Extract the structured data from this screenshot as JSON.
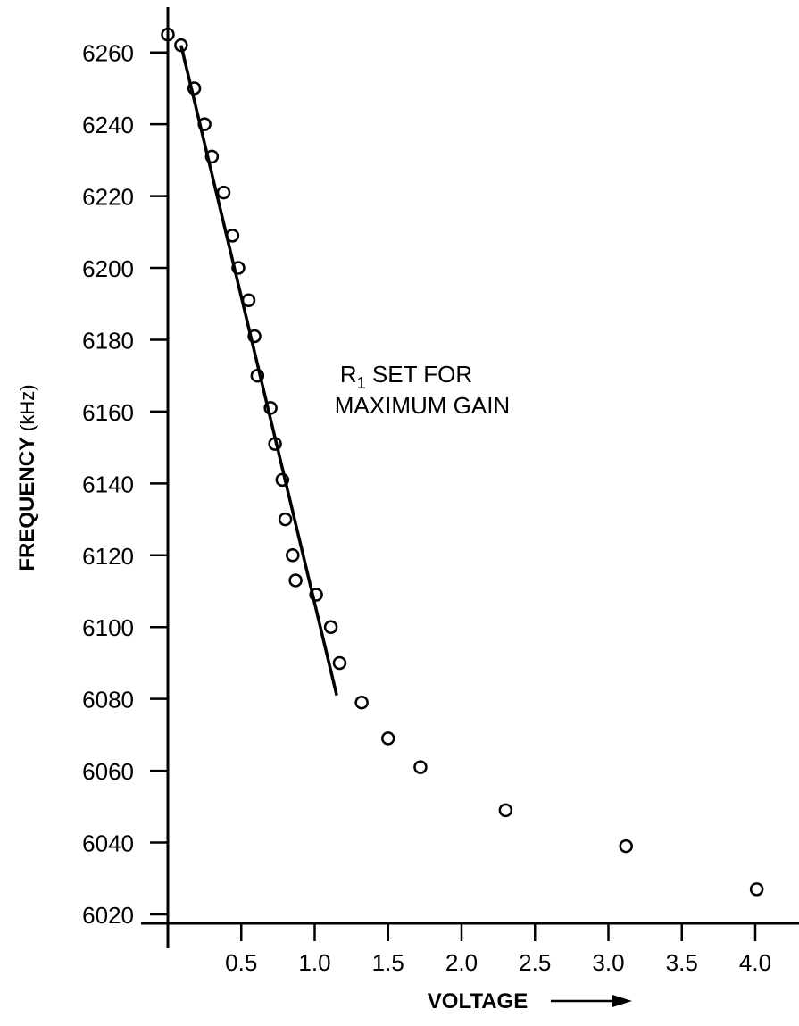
{
  "chart_data": {
    "type": "scatter",
    "xlabel": "VOLTAGE",
    "ylabel_bold": "FREQUENCY",
    "ylabel_unit": "(kHz)",
    "xlim": [
      0,
      4.2
    ],
    "ylim": [
      6013,
      6271
    ],
    "x_ticks": [
      "0.5",
      "1.0",
      "1.5",
      "2.0",
      "2.5",
      "3.0",
      "3.5",
      "4.0"
    ],
    "y_ticks": [
      "6020",
      "6040",
      "6060",
      "6080",
      "6100",
      "6120",
      "6140",
      "6160",
      "6180",
      "6200",
      "6220",
      "6240",
      "6260"
    ],
    "annotation": {
      "line1_main": "R",
      "line1_sub": "1",
      "line1_rest": " SET FOR",
      "line2": "MAXIMUM GAIN"
    },
    "series": [
      {
        "marker": "open-circle",
        "points": [
          [
            0.0,
            6265
          ],
          [
            0.09,
            6262
          ],
          [
            0.18,
            6250
          ],
          [
            0.25,
            6240
          ],
          [
            0.3,
            6231
          ],
          [
            0.38,
            6221
          ],
          [
            0.44,
            6209
          ],
          [
            0.48,
            6200
          ],
          [
            0.55,
            6191
          ],
          [
            0.59,
            6181
          ],
          [
            0.61,
            6170
          ],
          [
            0.7,
            6161
          ],
          [
            0.73,
            6151
          ],
          [
            0.78,
            6141
          ],
          [
            0.8,
            6130
          ],
          [
            0.85,
            6120
          ],
          [
            0.87,
            6113
          ],
          [
            1.01,
            6109
          ],
          [
            1.11,
            6100
          ],
          [
            1.17,
            6090
          ],
          [
            1.32,
            6079
          ],
          [
            1.5,
            6069
          ],
          [
            1.72,
            6061
          ],
          [
            2.3,
            6049
          ],
          [
            3.12,
            6039
          ],
          [
            4.01,
            6027
          ]
        ]
      }
    ],
    "fit_line": {
      "from": [
        0.09,
        6262
      ],
      "to": [
        1.15,
        6081
      ]
    },
    "grid": false,
    "legend": "none"
  }
}
